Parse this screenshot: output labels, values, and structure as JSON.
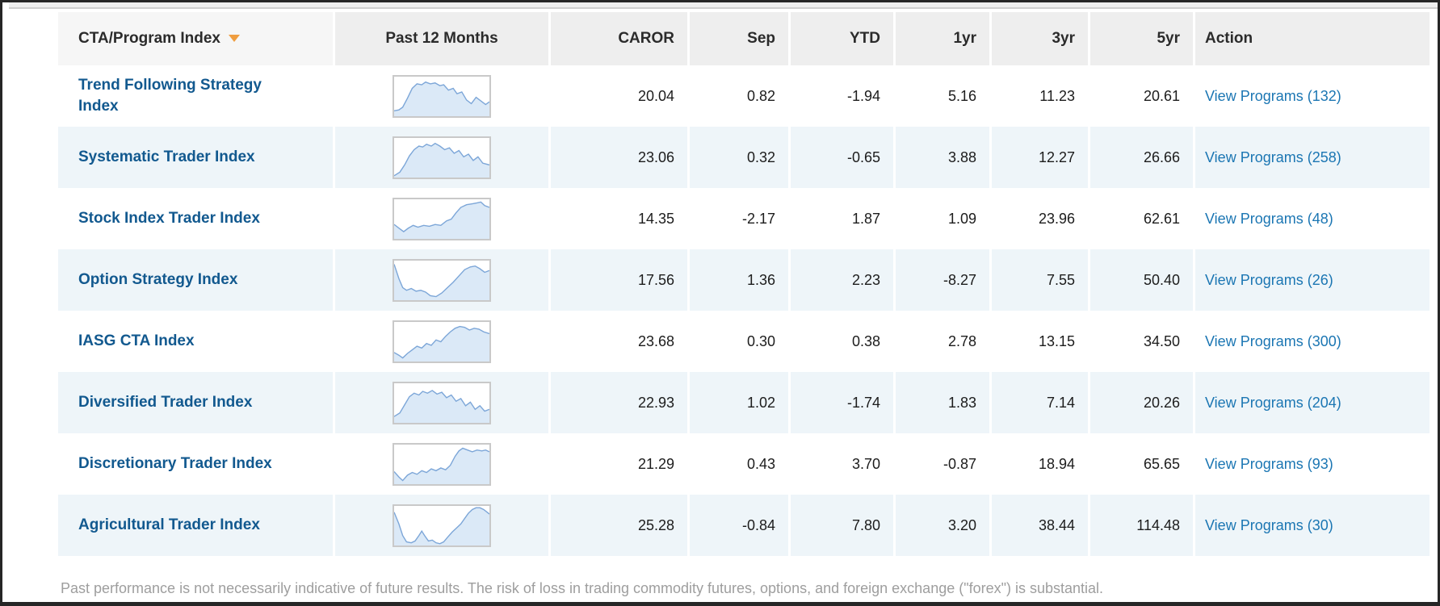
{
  "page": {
    "disclaimer": "Past performance is not necessarily indicative of future results. The risk of loss in trading commodity futures, options, and foreign exchange (\"forex\") is substantial."
  },
  "icons": {
    "sort": "sort-descending-triangle"
  },
  "colors": {
    "frame": "#262626",
    "header_bg": "#eeeeee",
    "header_bg_first": "#f6f6f6",
    "row_alt": "#eef5f9",
    "name_link": "#12598f",
    "action_link": "#1b76b3",
    "sort_icon": "#ef9d3f",
    "spark_line": "#7ca6d8",
    "spark_fill": "#dbe9f7",
    "disclaimer_text": "#9e9e9e"
  },
  "table": {
    "columns": [
      {
        "key": "name",
        "label": "CTA/Program Index",
        "sorted": "desc"
      },
      {
        "key": "spark",
        "label": "Past 12 Months"
      },
      {
        "key": "caror",
        "label": "CAROR"
      },
      {
        "key": "sep",
        "label": "Sep"
      },
      {
        "key": "ytd",
        "label": "YTD"
      },
      {
        "key": "yr1",
        "label": "1yr"
      },
      {
        "key": "yr3",
        "label": "3yr"
      },
      {
        "key": "yr5",
        "label": "5yr"
      },
      {
        "key": "action",
        "label": "Action"
      }
    ],
    "rows": [
      {
        "name": "Trend Following Strategy Index",
        "caror": "20.04",
        "sep": "0.82",
        "ytd": "-1.94",
        "yr1": "5.16",
        "yr3": "11.23",
        "yr5": "20.61",
        "action": "View Programs (132)",
        "spark": [
          [
            0,
            38
          ],
          [
            5,
            37
          ],
          [
            9,
            34
          ],
          [
            14,
            24
          ],
          [
            19,
            13
          ],
          [
            24,
            8
          ],
          [
            29,
            9
          ],
          [
            33,
            6
          ],
          [
            38,
            8
          ],
          [
            43,
            7
          ],
          [
            48,
            10
          ],
          [
            52,
            9
          ],
          [
            57,
            15
          ],
          [
            62,
            13
          ],
          [
            66,
            19
          ],
          [
            71,
            17
          ],
          [
            76,
            26
          ],
          [
            81,
            30
          ],
          [
            86,
            23
          ],
          [
            91,
            27
          ],
          [
            96,
            31
          ],
          [
            100,
            28
          ]
        ]
      },
      {
        "name": "Systematic Trader Index",
        "caror": "23.06",
        "sep": "0.32",
        "ytd": "-0.65",
        "yr1": "3.88",
        "yr3": "12.27",
        "yr5": "26.66",
        "action": "View Programs (258)",
        "spark": [
          [
            0,
            42
          ],
          [
            6,
            38
          ],
          [
            11,
            30
          ],
          [
            16,
            20
          ],
          [
            21,
            13
          ],
          [
            26,
            9
          ],
          [
            30,
            10
          ],
          [
            34,
            7
          ],
          [
            39,
            9
          ],
          [
            43,
            6
          ],
          [
            48,
            9
          ],
          [
            53,
            13
          ],
          [
            58,
            11
          ],
          [
            63,
            17
          ],
          [
            68,
            14
          ],
          [
            73,
            21
          ],
          [
            78,
            18
          ],
          [
            83,
            25
          ],
          [
            88,
            21
          ],
          [
            93,
            28
          ],
          [
            100,
            30
          ]
        ]
      },
      {
        "name": "Stock Index Trader Index",
        "caror": "14.35",
        "sep": "-2.17",
        "ytd": "1.87",
        "yr1": "1.09",
        "yr3": "23.96",
        "yr5": "62.61",
        "action": "View Programs (48)",
        "spark": [
          [
            0,
            28
          ],
          [
            5,
            32
          ],
          [
            10,
            36
          ],
          [
            15,
            32
          ],
          [
            20,
            29
          ],
          [
            25,
            31
          ],
          [
            31,
            29
          ],
          [
            37,
            30
          ],
          [
            43,
            28
          ],
          [
            49,
            29
          ],
          [
            55,
            24
          ],
          [
            60,
            22
          ],
          [
            65,
            15
          ],
          [
            70,
            9
          ],
          [
            76,
            6
          ],
          [
            82,
            5
          ],
          [
            87,
            4
          ],
          [
            91,
            3
          ],
          [
            95,
            7
          ],
          [
            100,
            9
          ]
        ]
      },
      {
        "name": "Option Strategy Index",
        "caror": "17.56",
        "sep": "1.36",
        "ytd": "2.23",
        "yr1": "-8.27",
        "yr3": "7.55",
        "yr5": "50.40",
        "action": "View Programs (26)",
        "spark": [
          [
            0,
            4
          ],
          [
            5,
            20
          ],
          [
            9,
            30
          ],
          [
            13,
            33
          ],
          [
            18,
            31
          ],
          [
            23,
            34
          ],
          [
            28,
            33
          ],
          [
            33,
            35
          ],
          [
            38,
            39
          ],
          [
            44,
            40
          ],
          [
            50,
            36
          ],
          [
            56,
            30
          ],
          [
            62,
            24
          ],
          [
            68,
            17
          ],
          [
            74,
            10
          ],
          [
            80,
            7
          ],
          [
            85,
            6
          ],
          [
            90,
            9
          ],
          [
            95,
            13
          ],
          [
            100,
            11
          ]
        ]
      },
      {
        "name": "IASG CTA Index",
        "caror": "23.68",
        "sep": "0.30",
        "ytd": "0.38",
        "yr1": "2.78",
        "yr3": "13.15",
        "yr5": "34.50",
        "action": "View Programs (300)",
        "spark": [
          [
            0,
            34
          ],
          [
            5,
            37
          ],
          [
            9,
            40
          ],
          [
            14,
            35
          ],
          [
            19,
            31
          ],
          [
            24,
            27
          ],
          [
            29,
            29
          ],
          [
            34,
            24
          ],
          [
            39,
            26
          ],
          [
            44,
            20
          ],
          [
            49,
            22
          ],
          [
            54,
            16
          ],
          [
            59,
            11
          ],
          [
            64,
            7
          ],
          [
            69,
            5
          ],
          [
            74,
            6
          ],
          [
            79,
            9
          ],
          [
            84,
            7
          ],
          [
            89,
            8
          ],
          [
            94,
            11
          ],
          [
            100,
            13
          ]
        ]
      },
      {
        "name": "Diversified Trader Index",
        "caror": "22.93",
        "sep": "1.02",
        "ytd": "-1.74",
        "yr1": "1.83",
        "yr3": "7.14",
        "yr5": "20.26",
        "action": "View Programs (204)",
        "spark": [
          [
            0,
            37
          ],
          [
            6,
            33
          ],
          [
            11,
            24
          ],
          [
            16,
            15
          ],
          [
            21,
            11
          ],
          [
            26,
            13
          ],
          [
            30,
            9
          ],
          [
            35,
            11
          ],
          [
            40,
            8
          ],
          [
            45,
            12
          ],
          [
            50,
            10
          ],
          [
            55,
            16
          ],
          [
            60,
            13
          ],
          [
            65,
            20
          ],
          [
            70,
            17
          ],
          [
            75,
            25
          ],
          [
            80,
            21
          ],
          [
            85,
            29
          ],
          [
            90,
            25
          ],
          [
            95,
            31
          ],
          [
            100,
            29
          ]
        ]
      },
      {
        "name": "Discretionary Trader Index",
        "caror": "21.29",
        "sep": "0.43",
        "ytd": "3.70",
        "yr1": "-0.87",
        "yr3": "18.94",
        "yr5": "65.65",
        "action": "View Programs (93)",
        "spark": [
          [
            0,
            30
          ],
          [
            5,
            36
          ],
          [
            9,
            40
          ],
          [
            14,
            34
          ],
          [
            19,
            31
          ],
          [
            24,
            33
          ],
          [
            29,
            29
          ],
          [
            34,
            31
          ],
          [
            39,
            27
          ],
          [
            44,
            29
          ],
          [
            49,
            26
          ],
          [
            54,
            28
          ],
          [
            59,
            23
          ],
          [
            64,
            13
          ],
          [
            68,
            7
          ],
          [
            72,
            4
          ],
          [
            77,
            6
          ],
          [
            82,
            8
          ],
          [
            87,
            6
          ],
          [
            92,
            7
          ],
          [
            96,
            6
          ],
          [
            100,
            8
          ]
        ]
      },
      {
        "name": "Agricultural Trader Index",
        "caror": "25.28",
        "sep": "-0.84",
        "ytd": "7.80",
        "yr1": "3.20",
        "yr3": "38.44",
        "yr5": "114.48",
        "action": "View Programs (30)",
        "spark": [
          [
            0,
            7
          ],
          [
            5,
            20
          ],
          [
            9,
            33
          ],
          [
            13,
            40
          ],
          [
            18,
            41
          ],
          [
            22,
            39
          ],
          [
            26,
            33
          ],
          [
            29,
            28
          ],
          [
            32,
            33
          ],
          [
            36,
            39
          ],
          [
            40,
            38
          ],
          [
            44,
            41
          ],
          [
            48,
            42
          ],
          [
            52,
            40
          ],
          [
            56,
            35
          ],
          [
            61,
            29
          ],
          [
            66,
            24
          ],
          [
            70,
            20
          ],
          [
            74,
            14
          ],
          [
            78,
            8
          ],
          [
            82,
            4
          ],
          [
            86,
            2
          ],
          [
            90,
            2
          ],
          [
            94,
            4
          ],
          [
            100,
            9
          ]
        ]
      }
    ]
  }
}
